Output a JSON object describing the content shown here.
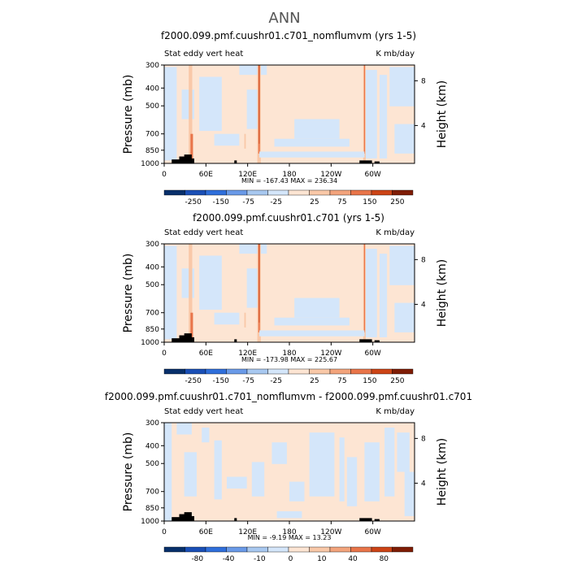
{
  "page_title": "ANN",
  "colors": {
    "neg5": "#08306b",
    "neg4": "#1a4fb6",
    "neg3": "#2f6fdb",
    "neg2": "#6a9ae8",
    "neg1": "#a8c8f0",
    "neg0": "#d4e6fa",
    "pos0": "#fde5d3",
    "pos1": "#f9c8a8",
    "pos2": "#f3a47c",
    "pos3": "#e9754a",
    "pos4": "#cc4416",
    "pos5": "#7f1d06",
    "frame": "#000000",
    "topo": "#000000"
  },
  "chart_data": [
    {
      "type": "heatmap",
      "title": "f2000.099.pmf.cuushr01.c701_nomflumvm (yrs 1-5)",
      "left_label": "Stat eddy vert heat",
      "right_label": "K mb/day",
      "ylabel": "Pressure (mb)",
      "y2label": "Height (km)",
      "pressure_ticks": [
        "300",
        "400",
        "500",
        "700",
        "850",
        "1000"
      ],
      "height_ticks": [
        "8",
        "4"
      ],
      "lon_ticks": [
        "0",
        "60E",
        "120E",
        "180",
        "120W",
        "60W"
      ],
      "min_max": "MIN = -167.43   MAX = 236.34",
      "colorbar_labels": [
        "-250",
        "-150",
        "-75",
        "-25",
        "25",
        "75",
        "150",
        "250"
      ]
    },
    {
      "type": "heatmap",
      "title": "f2000.099.pmf.cuushr01.c701 (yrs 1-5)",
      "left_label": "Stat eddy vert heat",
      "right_label": "K mb/day",
      "ylabel": "Pressure (mb)",
      "y2label": "Height (km)",
      "pressure_ticks": [
        "300",
        "400",
        "500",
        "700",
        "850",
        "1000"
      ],
      "height_ticks": [
        "8",
        "4"
      ],
      "lon_ticks": [
        "0",
        "60E",
        "120E",
        "180",
        "120W",
        "60W"
      ],
      "min_max": "MIN = -173.98   MAX = 225.67",
      "colorbar_labels": [
        "-250",
        "-150",
        "-75",
        "-25",
        "25",
        "75",
        "150",
        "250"
      ]
    },
    {
      "type": "heatmap",
      "title": "f2000.099.pmf.cuushr01.c701_nomflumvm - f2000.099.pmf.cuushr01.c701",
      "left_label": "Stat eddy vert heat",
      "right_label": "K mb/day",
      "ylabel": "Pressure (mb)",
      "y2label": "Height (km)",
      "pressure_ticks": [
        "300",
        "400",
        "500",
        "700",
        "850",
        "1000"
      ],
      "height_ticks": [
        "8",
        "4"
      ],
      "lon_ticks": [
        "0",
        "60E",
        "120E",
        "180",
        "120W",
        "60W"
      ],
      "min_max": "MIN =   -9.19   MAX =   13.23",
      "colorbar_labels": [
        "-80",
        "-40",
        "-10",
        "0",
        "10",
        "40",
        "80"
      ]
    }
  ]
}
